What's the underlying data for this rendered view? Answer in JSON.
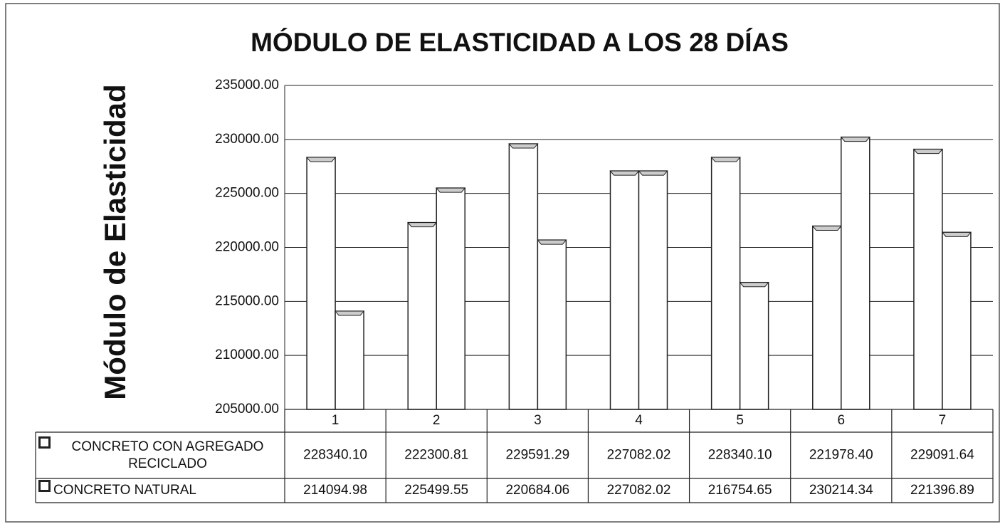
{
  "chart_data": {
    "type": "bar",
    "title": "MÓDULO DE ELASTICIDAD A LOS 28 DÍAS",
    "y_label": "Módulo de Elasticidad",
    "categories": [
      "1",
      "2",
      "3",
      "4",
      "5",
      "6",
      "7"
    ],
    "series": [
      {
        "name": "CONCRETO CON AGREGADO RECICLADO",
        "color": "#ffffff",
        "values": [
          228340.1,
          222300.81,
          229591.29,
          227082.02,
          228340.1,
          221978.4,
          229091.64
        ],
        "value_labels": [
          "228340.10",
          "222300.81",
          "229591.29",
          "227082.02",
          "228340.10",
          "221978.40",
          "229091.64"
        ]
      },
      {
        "name": "CONCRETO NATURAL",
        "color": "#ffffff",
        "values": [
          214094.98,
          225499.55,
          220684.06,
          227082.02,
          216754.65,
          230214.34,
          221396.89
        ],
        "value_labels": [
          "214094.98",
          "225499.55",
          "220684.06",
          "227082.02",
          "216754.65",
          "230214.34",
          "221396.89"
        ]
      }
    ],
    "ylim": [
      205000,
      235000
    ],
    "yticks": [
      {
        "value": 205000,
        "label": "205000.00"
      },
      {
        "value": 210000,
        "label": "210000.00"
      },
      {
        "value": 215000,
        "label": "215000.00"
      },
      {
        "value": 220000,
        "label": "220000.00"
      },
      {
        "value": 225000,
        "label": "225000.00"
      },
      {
        "value": 230000,
        "label": "230000.00"
      },
      {
        "value": 235000,
        "label": "235000.00"
      }
    ],
    "grid": true,
    "data_table": true
  }
}
